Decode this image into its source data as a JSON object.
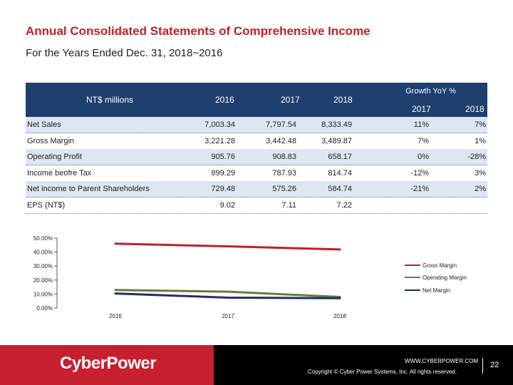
{
  "title": "Annual Consolidated Statements of Comprehensive Income",
  "subtitle": "For the Years Ended Dec. 31, 2018~2016",
  "table": {
    "unit_label": "NT$ millions",
    "years": [
      "2016",
      "2017",
      "2018"
    ],
    "growth_label": "Growth YoY %",
    "growth_years": [
      "2017",
      "2018"
    ],
    "rows": [
      {
        "label": "Net Sales",
        "v2016": "7,003.34",
        "v2017": "7,797.54",
        "v2018": "8,333.49",
        "g2017": "11%",
        "g2018": "7%"
      },
      {
        "label": "Gross Margin",
        "v2016": "3,221.28",
        "v2017": "3,442.48",
        "v2018": "3,489.87",
        "g2017": "7%",
        "g2018": "1%"
      },
      {
        "label": "Operating Profit",
        "v2016": "905.76",
        "v2017": "908.83",
        "v2018": "658.17",
        "g2017": "0%",
        "g2018": "-28%"
      },
      {
        "label": "Income beofre Tax",
        "v2016": "899.29",
        "v2017": "787.93",
        "v2018": "814.74",
        "g2017": "-12%",
        "g2018": "3%"
      },
      {
        "label": "Net income to Parent Shareholders",
        "v2016": "729.48",
        "v2017": "575.26",
        "v2018": "584.74",
        "g2017": "-21%",
        "g2018": "2%"
      },
      {
        "label": "EPS (NT$)",
        "v2016": "9.02",
        "v2017": "7.11",
        "v2018": "7.22",
        "g2017": "",
        "g2018": ""
      }
    ]
  },
  "chart_data": {
    "type": "line",
    "categories": [
      "2016",
      "2017",
      "2018"
    ],
    "y_ticks": [
      "0.00%",
      "10.00%",
      "20.00%",
      "30.00%",
      "40.00%",
      "50.00%"
    ],
    "ylim": [
      0,
      50
    ],
    "legend_position": "right",
    "series": [
      {
        "name": "Gross Margin",
        "values": [
          46.0,
          44.15,
          41.88
        ],
        "color": "#c0202a"
      },
      {
        "name": "Operating Margin",
        "values": [
          12.93,
          11.66,
          7.9
        ],
        "color": "#6b7a3c"
      },
      {
        "name": "Net Margin",
        "values": [
          10.42,
          7.38,
          7.02
        ],
        "color": "#1f3060"
      }
    ]
  },
  "footer": {
    "brand": "CyberPower",
    "url": "WWW.CYBERPOWER.COM",
    "copyright": "Copyright © Cyber Power Systems, Inc. All rights reserved.",
    "page_number": "22",
    "brand_color": "#c71f2d"
  }
}
